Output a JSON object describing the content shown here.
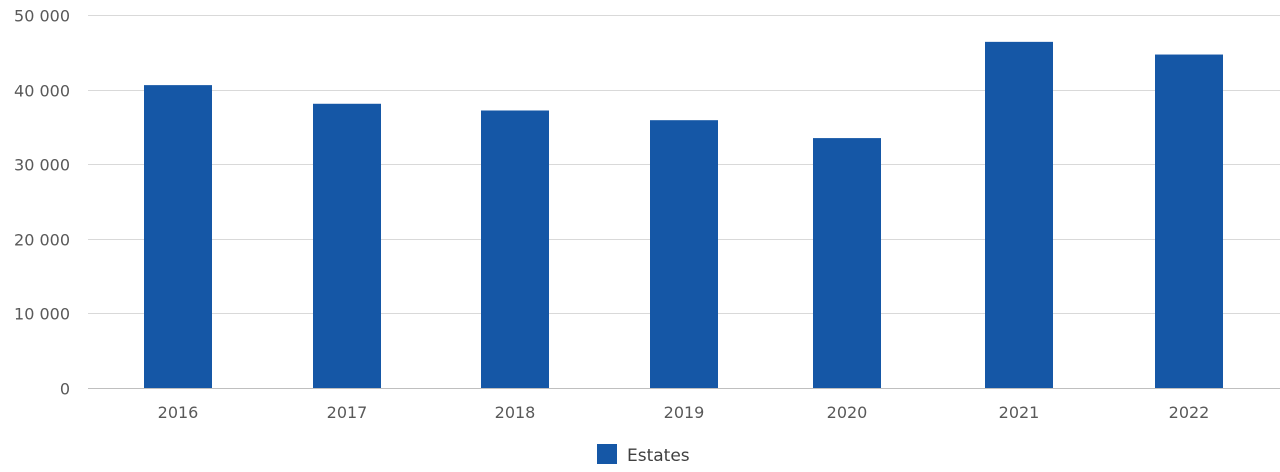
{
  "colors": {
    "bar": "#1557a6",
    "grid": "#d9d9d9",
    "axis": "#bfbfbf",
    "text": "#595959"
  },
  "chart_data": {
    "type": "bar",
    "title": "",
    "xlabel": "",
    "ylabel": "",
    "categories": [
      "2016",
      "2017",
      "2018",
      "2019",
      "2020",
      "2021",
      "2022"
    ],
    "series": [
      {
        "name": "Estates",
        "values": [
          40600,
          38100,
          37200,
          35900,
          33500,
          46400,
          44700
        ]
      }
    ],
    "ylim": [
      0,
      50000
    ],
    "yticks": [
      0,
      10000,
      20000,
      30000,
      40000,
      50000
    ],
    "ytick_labels": [
      "0",
      "10 000",
      "20 000",
      "30 000",
      "40 000",
      "50 000"
    ],
    "grid": true,
    "legend_position": "bottom-center"
  }
}
